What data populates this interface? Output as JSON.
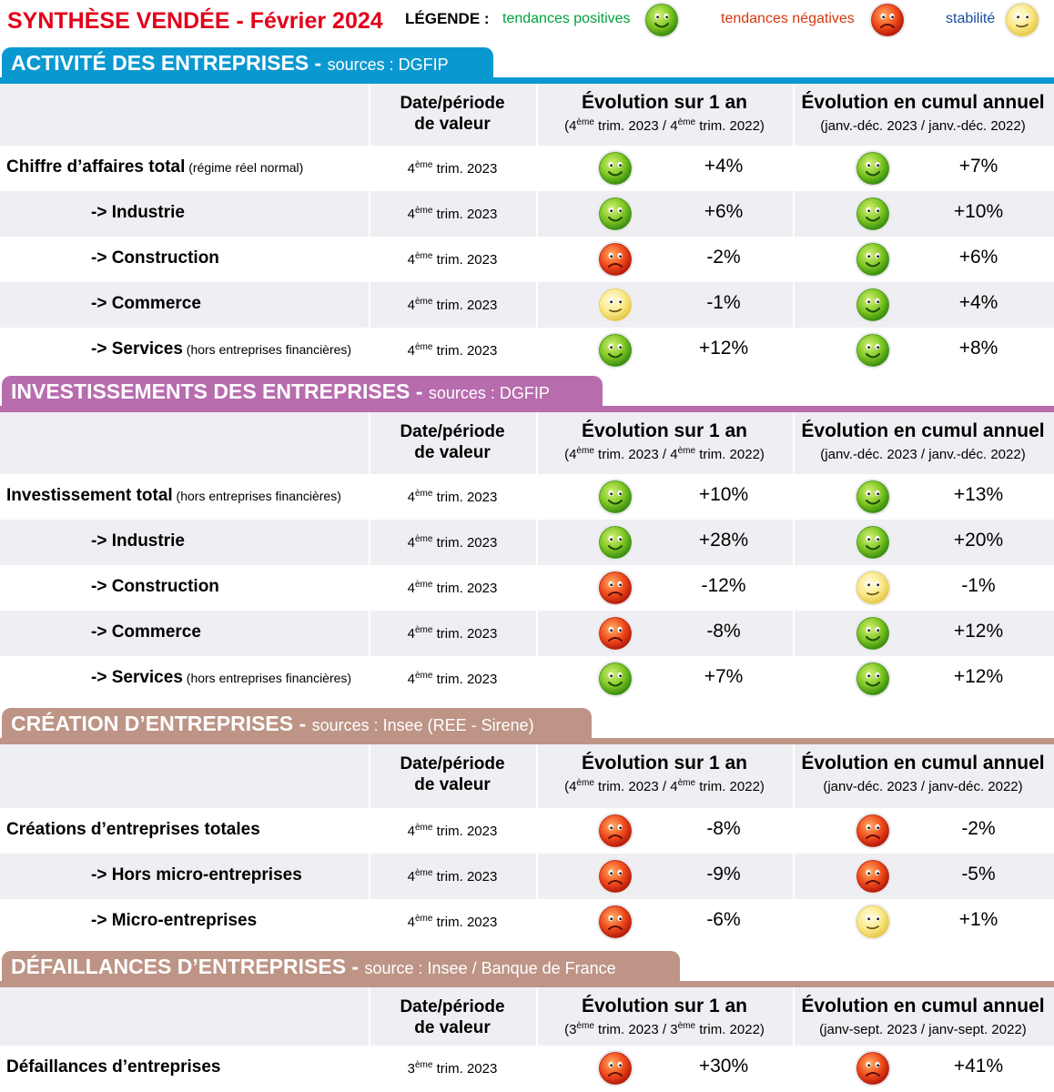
{
  "title": "SYNTHÈSE VENDÉE - Février 2024",
  "legend": {
    "label": "LÉGENDE :",
    "positive": "tendances positives",
    "negative": "tendances négatives",
    "stable": "stabilité"
  },
  "colors": {
    "title": "#e2001a",
    "positive_text": "#00a23c",
    "negative_text": "#d4380d",
    "stable_text": "#1b4fa0",
    "activite": "#0a98d0",
    "investissements": "#b76cae",
    "creation": "#bd9485",
    "defaillances": "#bd9485"
  },
  "sections": {
    "activite": {
      "name": "ACTIVITÉ DES ENTREPRISES",
      "dash": " - ",
      "source": "sources : DGFIP",
      "header": {
        "date_line1": "Date/période",
        "date_line2": "de valeur",
        "evo_title": "Évolution sur 1 an",
        "evo_sub": [
          "(4",
          "ème",
          " trim. 2023 / 4",
          "ème",
          " trim. 2022)"
        ],
        "cum_title": "Évolution en cumul annuel",
        "cum_sub": "(janv.-déc. 2023 / janv.-déc. 2022)"
      },
      "rows": [
        {
          "label": "Chiffre d’affaires total",
          "note": " (régime réel normal)",
          "date_num": "4",
          "date_sup": "ème",
          "date_rest": " trim. 2023",
          "evo_face": "positive",
          "evo": "+4%",
          "cum_face": "positive",
          "cum": "+7%"
        },
        {
          "label": "-> Industrie",
          "note": "",
          "date_num": "4",
          "date_sup": "ème",
          "date_rest": " trim. 2023",
          "evo_face": "positive",
          "evo": "+6%",
          "cum_face": "positive",
          "cum": "+10%"
        },
        {
          "label": "-> Construction",
          "note": "",
          "date_num": "4",
          "date_sup": "ème",
          "date_rest": " trim. 2023",
          "evo_face": "negative",
          "evo": "-2%",
          "cum_face": "positive",
          "cum": "+6%"
        },
        {
          "label": "-> Commerce",
          "note": "",
          "date_num": "4",
          "date_sup": "ème",
          "date_rest": " trim. 2023",
          "evo_face": "stable",
          "evo": "-1%",
          "cum_face": "positive",
          "cum": "+4%"
        },
        {
          "label": "-> Services",
          "note": " (hors entreprises financières)",
          "date_num": "4",
          "date_sup": "ème",
          "date_rest": " trim. 2023",
          "evo_face": "positive",
          "evo": "+12%",
          "cum_face": "positive",
          "cum": "+8%"
        }
      ]
    },
    "investissements": {
      "name": "INVESTISSEMENTS DES ENTREPRISES",
      "dash": " - ",
      "source": "sources : DGFIP",
      "header": {
        "date_line1": "Date/période",
        "date_line2": "de valeur",
        "evo_title": "Évolution sur 1 an",
        "evo_sub": [
          "(4",
          "ème",
          " trim. 2023 / 4",
          "ème",
          " trim. 2022)"
        ],
        "cum_title": "Évolution en cumul annuel",
        "cum_sub": "(janv.-déc. 2023 / janv.-déc. 2022)"
      },
      "rows": [
        {
          "label": "Investissement total",
          "note": " (hors entreprises financières)",
          "date_num": "4",
          "date_sup": "ème",
          "date_rest": " trim. 2023",
          "evo_face": "positive",
          "evo": "+10%",
          "cum_face": "positive",
          "cum": "+13%"
        },
        {
          "label": "-> Industrie",
          "note": "",
          "date_num": "4",
          "date_sup": "ème",
          "date_rest": " trim. 2023",
          "evo_face": "positive",
          "evo": "+28%",
          "cum_face": "positive",
          "cum": "+20%"
        },
        {
          "label": "-> Construction",
          "note": "",
          "date_num": "4",
          "date_sup": "ème",
          "date_rest": " trim. 2023",
          "evo_face": "negative",
          "evo": "-12%",
          "cum_face": "stable",
          "cum": "-1%"
        },
        {
          "label": "-> Commerce",
          "note": "",
          "date_num": "4",
          "date_sup": "ème",
          "date_rest": " trim. 2023",
          "evo_face": "negative",
          "evo": "-8%",
          "cum_face": "positive",
          "cum": "+12%"
        },
        {
          "label": "-> Services",
          "note": " (hors entreprises financières)",
          "date_num": "4",
          "date_sup": "ème",
          "date_rest": " trim. 2023",
          "evo_face": "positive",
          "evo": "+7%",
          "cum_face": "positive",
          "cum": "+12%"
        }
      ]
    },
    "creation": {
      "name": "CRÉATION D’ENTREPRISES",
      "dash": " - ",
      "source": "sources : Insee (REE - Sirene)",
      "header": {
        "date_line1": "Date/période",
        "date_line2": "de valeur",
        "evo_title": "Évolution sur 1 an",
        "evo_sub": [
          "(4",
          "ème",
          " trim. 2023 / 4",
          "ème",
          " trim. 2022)"
        ],
        "cum_title": "Évolution en cumul annuel",
        "cum_sub": "(janv-déc. 2023 / janv-déc. 2022)"
      },
      "rows": [
        {
          "label": "Créations d’entreprises totales",
          "note": "",
          "date_num": "4",
          "date_sup": "ème",
          "date_rest": " trim. 2023",
          "evo_face": "negative",
          "evo": "-8%",
          "cum_face": "negative",
          "cum": "-2%"
        },
        {
          "label": "-> Hors micro-entreprises",
          "note": "",
          "date_num": "4",
          "date_sup": "ème",
          "date_rest": " trim. 2023",
          "evo_face": "negative",
          "evo": "-9%",
          "cum_face": "negative",
          "cum": "-5%"
        },
        {
          "label": "-> Micro-entreprises",
          "note": "",
          "date_num": "4",
          "date_sup": "ème",
          "date_rest": " trim. 2023",
          "evo_face": "negative",
          "evo": "-6%",
          "cum_face": "stable",
          "cum": "+1%"
        }
      ]
    },
    "defaillances": {
      "name": "DÉFAILLANCES D’ENTREPRISES",
      "dash": " - ",
      "source": "source : Insee / Banque de France",
      "header": {
        "date_line1": "Date/période",
        "date_line2": "de valeur",
        "evo_title": "Évolution sur 1 an",
        "evo_sub": [
          "(3",
          "ème",
          " trim. 2023 / 3",
          "ème",
          " trim. 2022)"
        ],
        "cum_title": "Évolution en cumul annuel",
        "cum_sub": "(janv-sept. 2023 / janv-sept. 2022)"
      },
      "rows": [
        {
          "label": "Défaillances d’entreprises",
          "note": "",
          "date_num": "3",
          "date_sup": "ème",
          "date_rest": " trim. 2023",
          "evo_face": "negative",
          "evo": "+30%",
          "cum_face": "negative",
          "cum": "+41%"
        }
      ]
    }
  }
}
